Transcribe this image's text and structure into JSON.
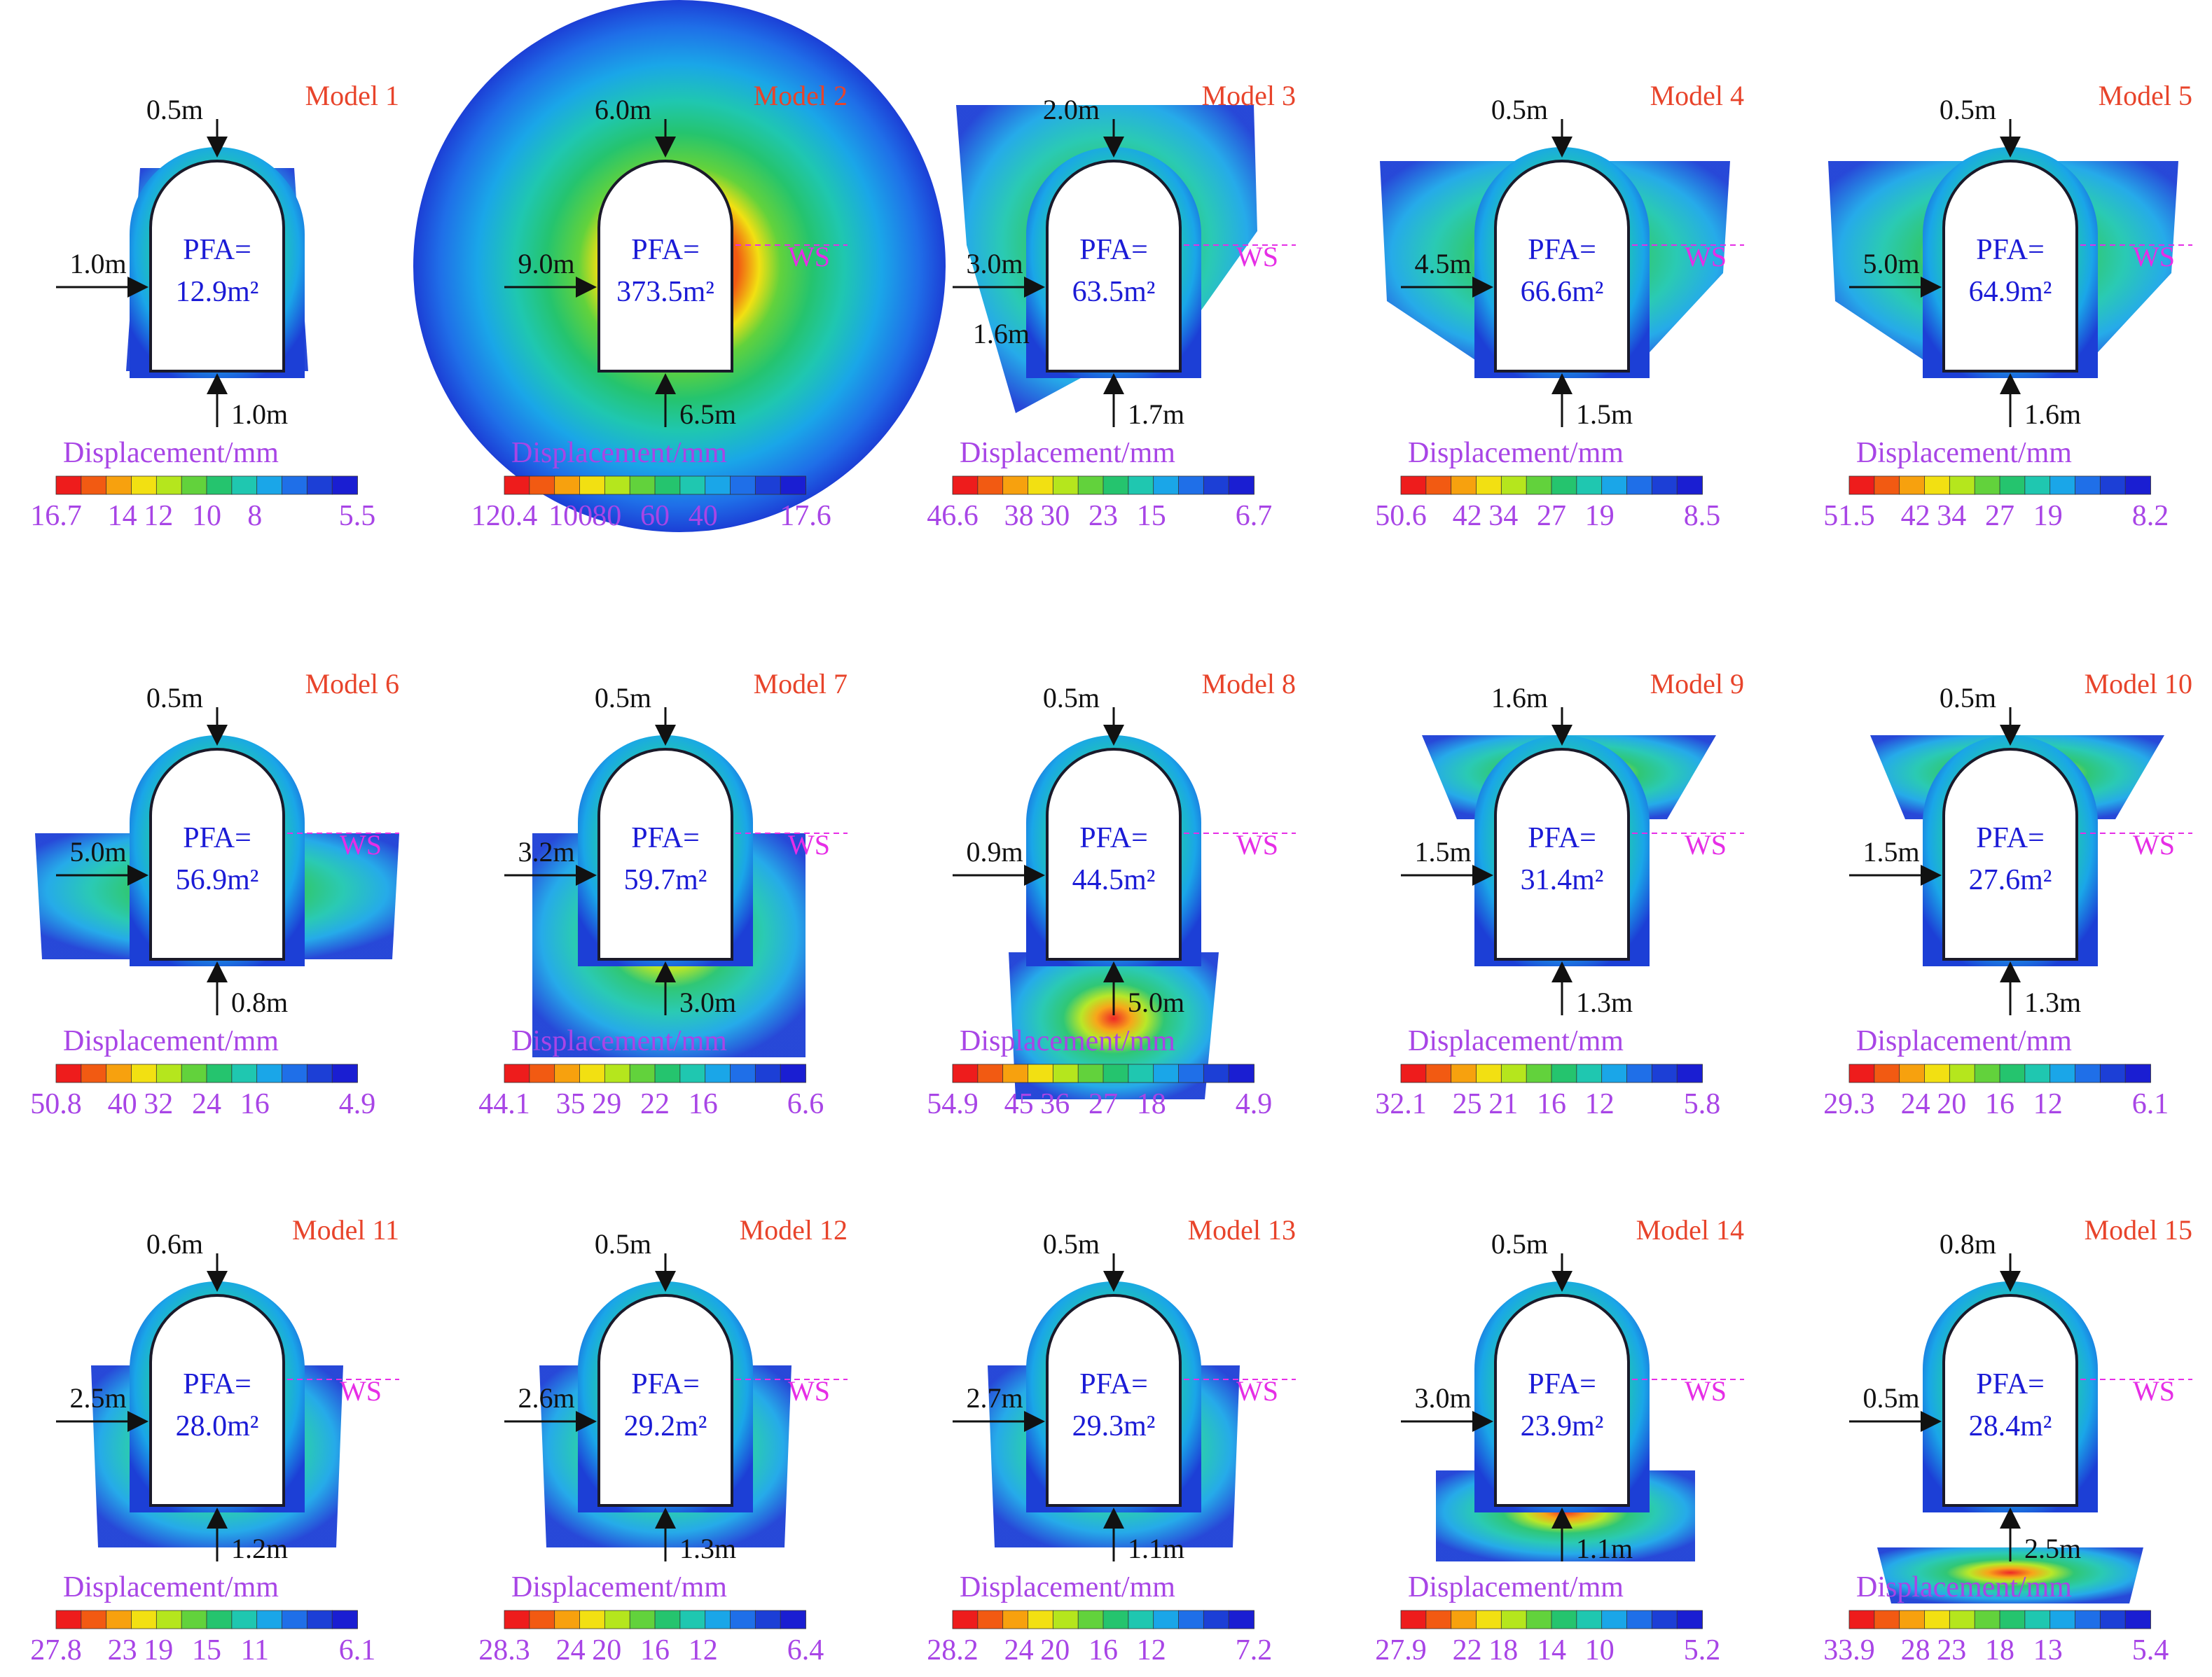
{
  "figure": {
    "colorbar_colors": [
      "#ee1c1c",
      "#f25a12",
      "#f7a10e",
      "#f2e012",
      "#b5e61d",
      "#62d23c",
      "#25c46e",
      "#1fc7b0",
      "#1aa6e8",
      "#1f6fe8",
      "#1c3fd6",
      "#1a1ed2"
    ],
    "colors": {
      "label": "#e8442b",
      "pfa": "#1b1bd6",
      "dim": "#111111",
      "cbar": "#a845e6",
      "ws": "#e62ee6",
      "outline": "#1a1a2a"
    },
    "models": [
      {
        "title": "Model 1",
        "pfa_label": "PFA=",
        "pfa_value": "12.9m²",
        "cbar_title": "Displacement/mm",
        "ticks": [
          "16.7",
          "14",
          "12",
          "10",
          "8",
          "5.5"
        ],
        "ws": "",
        "dims": [
          "0.5m",
          "1.0m",
          "1.0m"
        ],
        "shape": "sym"
      },
      {
        "title": "Model 2",
        "pfa_label": "PFA=",
        "pfa_value": "373.5m²",
        "cbar_title": "Displacement/mm",
        "ticks": [
          "120.4",
          "100",
          "80",
          "60",
          "40",
          "17.6"
        ],
        "ws": "WS",
        "dims": [
          "6.0m",
          "9.0m",
          "6.5m"
        ],
        "shape": "circle"
      },
      {
        "title": "Model 3",
        "pfa_label": "PFA=",
        "pfa_value": "63.5m²",
        "cbar_title": "Displacement/mm",
        "ticks": [
          "46.6",
          "38",
          "30",
          "23",
          "15",
          "6.7"
        ],
        "ws": "WS",
        "dims": [
          "2.0m",
          "3.0m",
          "1.6m",
          "1.7m"
        ],
        "shape": "top"
      },
      {
        "title": "Model 4",
        "pfa_label": "PFA=",
        "pfa_value": "66.6m²",
        "cbar_title": "Displacement/mm",
        "ticks": [
          "50.6",
          "42",
          "34",
          "27",
          "19",
          "8.5"
        ],
        "ws": "WS",
        "dims": [
          "0.5m",
          "4.5m",
          "1.5m"
        ],
        "shape": "wide"
      },
      {
        "title": "Model 5",
        "pfa_label": "PFA=",
        "pfa_value": "64.9m²",
        "cbar_title": "Displacement/mm",
        "ticks": [
          "51.5",
          "42",
          "34",
          "27",
          "19",
          "8.2"
        ],
        "ws": "WS",
        "dims": [
          "0.5m",
          "5.0m",
          "1.6m"
        ],
        "shape": "wide"
      },
      {
        "title": "Model 6",
        "pfa_label": "PFA=",
        "pfa_value": "56.9m²",
        "cbar_title": "Displacement/mm",
        "ticks": [
          "50.8",
          "40",
          "32",
          "24",
          "16",
          "4.9"
        ],
        "ws": "WS",
        "dims": [
          "0.5m",
          "5.0m",
          "0.8m"
        ],
        "shape": "side"
      },
      {
        "title": "Model 7",
        "pfa_label": "PFA=",
        "pfa_value": "59.7m²",
        "cbar_title": "Displacement/mm",
        "ticks": [
          "44.1",
          "35",
          "29",
          "22",
          "16",
          "6.6"
        ],
        "ws": "WS",
        "dims": [
          "0.5m",
          "3.2m",
          "3.0m"
        ],
        "shape": "bottom"
      },
      {
        "title": "Model 8",
        "pfa_label": "PFA=",
        "pfa_value": "44.5m²",
        "cbar_title": "Displacement/mm",
        "ticks": [
          "54.9",
          "45",
          "36",
          "27",
          "18",
          "4.9"
        ],
        "ws": "WS",
        "dims": [
          "0.5m",
          "0.9m",
          "5.0m"
        ],
        "shape": "floor"
      },
      {
        "title": "Model 9",
        "pfa_label": "PFA=",
        "pfa_value": "31.4m²",
        "cbar_title": "Displacement/mm",
        "ticks": [
          "32.1",
          "25",
          "21",
          "16",
          "12",
          "5.8"
        ],
        "ws": "WS",
        "dims": [
          "1.6m",
          "1.5m",
          "1.3m"
        ],
        "shape": "cap"
      },
      {
        "title": "Model 10",
        "pfa_label": "PFA=",
        "pfa_value": "27.6m²",
        "cbar_title": "Displacement/mm",
        "ticks": [
          "29.3",
          "24",
          "20",
          "16",
          "12",
          "6.1"
        ],
        "ws": "WS",
        "dims": [
          "0.5m",
          "1.5m",
          "1.3m"
        ],
        "shape": "cap"
      },
      {
        "title": "Model 11",
        "pfa_label": "PFA=",
        "pfa_value": "28.0m²",
        "cbar_title": "Displacement/mm",
        "ticks": [
          "27.8",
          "23",
          "19",
          "15",
          "11",
          "6.1"
        ],
        "ws": "WS",
        "dims": [
          "0.6m",
          "2.5m",
          "1.2m"
        ],
        "shape": "sym2"
      },
      {
        "title": "Model 12",
        "pfa_label": "PFA=",
        "pfa_value": "29.2m²",
        "cbar_title": "Displacement/mm",
        "ticks": [
          "28.3",
          "24",
          "20",
          "16",
          "12",
          "6.4"
        ],
        "ws": "WS",
        "dims": [
          "0.5m",
          "2.6m",
          "1.3m"
        ],
        "shape": "sym2"
      },
      {
        "title": "Model 13",
        "pfa_label": "PFA=",
        "pfa_value": "29.3m²",
        "cbar_title": "Displacement/mm",
        "ticks": [
          "28.2",
          "24",
          "20",
          "16",
          "12",
          "7.2"
        ],
        "ws": "WS",
        "dims": [
          "0.5m",
          "2.7m",
          "1.1m"
        ],
        "shape": "sym2"
      },
      {
        "title": "Model 14",
        "pfa_label": "PFA=",
        "pfa_value": "23.9m²",
        "cbar_title": "Displacement/mm",
        "ticks": [
          "27.9",
          "22",
          "18",
          "14",
          "10",
          "5.2"
        ],
        "ws": "WS",
        "dims": [
          "0.5m",
          "3.0m",
          "1.1m"
        ],
        "shape": "low"
      },
      {
        "title": "Model 15",
        "pfa_label": "PFA=",
        "pfa_value": "28.4m²",
        "cbar_title": "Displacement/mm",
        "ticks": [
          "33.9",
          "28",
          "23",
          "18",
          "13",
          "5.4"
        ],
        "ws": "WS",
        "dims": [
          "0.8m",
          "0.5m",
          "2.5m"
        ],
        "shape": "base"
      }
    ]
  }
}
